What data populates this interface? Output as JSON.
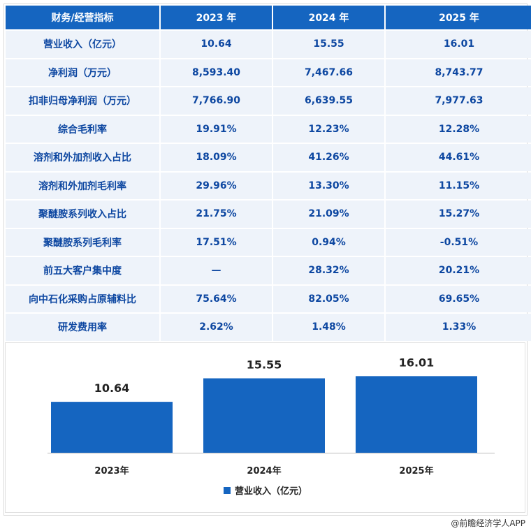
{
  "table": {
    "headers": [
      "财务/经营指标",
      "2023 年",
      "2024 年",
      "2025 年"
    ],
    "rows": [
      [
        "营业收入（亿元）",
        "10.64",
        "15.55",
        "16.01"
      ],
      [
        "净利润（万元）",
        "8,593.40",
        "7,467.66",
        "8,743.77"
      ],
      [
        "扣非归母净利润（万元）",
        "7,766.90",
        "6,639.55",
        "7,977.63"
      ],
      [
        "综合毛利率",
        "19.91%",
        "12.23%",
        "12.28%"
      ],
      [
        "溶剂和外加剂收入占比",
        "18.09%",
        "41.26%",
        "44.61%"
      ],
      [
        "溶剂和外加剂毛利率",
        "29.96%",
        "13.30%",
        "11.15%"
      ],
      [
        "聚醚胺系列收入占比",
        "21.75%",
        "21.09%",
        "15.27%"
      ],
      [
        "聚醚胺系列毛利率",
        "17.51%",
        "0.94%",
        "-0.51%"
      ],
      [
        "前五大客户集中度",
        "—",
        "28.32%",
        "20.21%"
      ],
      [
        "向中石化采购占原辅料比",
        "75.64%",
        "82.05%",
        "69.65%"
      ],
      [
        "研发费用率",
        "2.62%",
        "1.48%",
        "1.33%"
      ]
    ]
  },
  "chart_data": {
    "type": "bar",
    "categories": [
      "2023年",
      "2024年",
      "2025年"
    ],
    "series": [
      {
        "name": "营业收入（亿元）",
        "values": [
          10.64,
          15.55,
          16.01
        ],
        "color": "#1565c0"
      }
    ],
    "data_labels": [
      "10.64",
      "15.55",
      "16.01"
    ],
    "ylim": [
      0,
      20
    ],
    "grid": false,
    "legend": "bottom"
  },
  "footer": {
    "credit": "@前瞻经济学人APP"
  },
  "colors": {
    "header": "#1565c0",
    "cell": "#eef3fa",
    "text": "#0d47a1",
    "bar": "#1565c0"
  }
}
